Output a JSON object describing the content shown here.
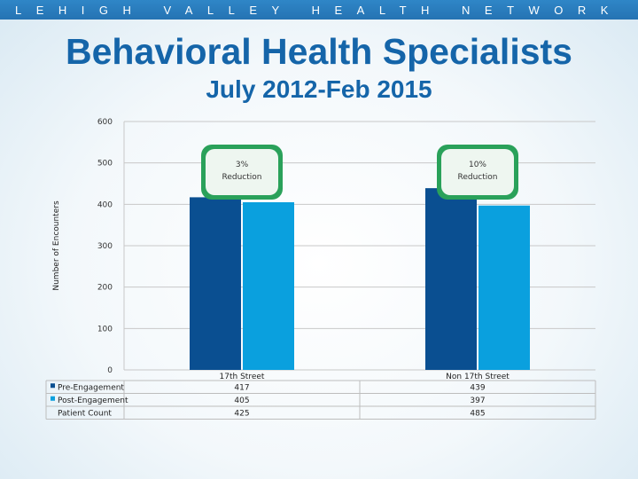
{
  "header": {
    "network_name": "LEHIGH VALLEY HEALTH NETWORK",
    "title": "Behavioral Health Specialists",
    "subtitle": "July 2012-Feb 2015"
  },
  "colors": {
    "band": "#2f86c7",
    "title": "#1565a9",
    "pre": "#0a4f91",
    "post": "#0aa0de",
    "callout_fill": "#2aa15a",
    "callout_inner": "#eef6f0"
  },
  "chart_data": {
    "type": "bar",
    "ylabel": "Number of Encounters",
    "ylim": [
      0,
      600
    ],
    "yticks": [
      0,
      100,
      200,
      300,
      400,
      500,
      600
    ],
    "categories": [
      "17th Street",
      "Non 17th Street"
    ],
    "series": [
      {
        "name": "Pre-Engagement",
        "values": [
          417,
          439
        ]
      },
      {
        "name": "Post-Engagement",
        "values": [
          405,
          397
        ]
      }
    ],
    "table_rows": [
      {
        "label": "Patient Count",
        "values": [
          425,
          485
        ]
      }
    ],
    "annotations": [
      {
        "line1": "3%",
        "line2": "Reduction",
        "category": "17th Street"
      },
      {
        "line1": "10%",
        "line2": "Reduction",
        "category": "Non 17th Street"
      }
    ],
    "grid": true,
    "legend": "data table"
  }
}
